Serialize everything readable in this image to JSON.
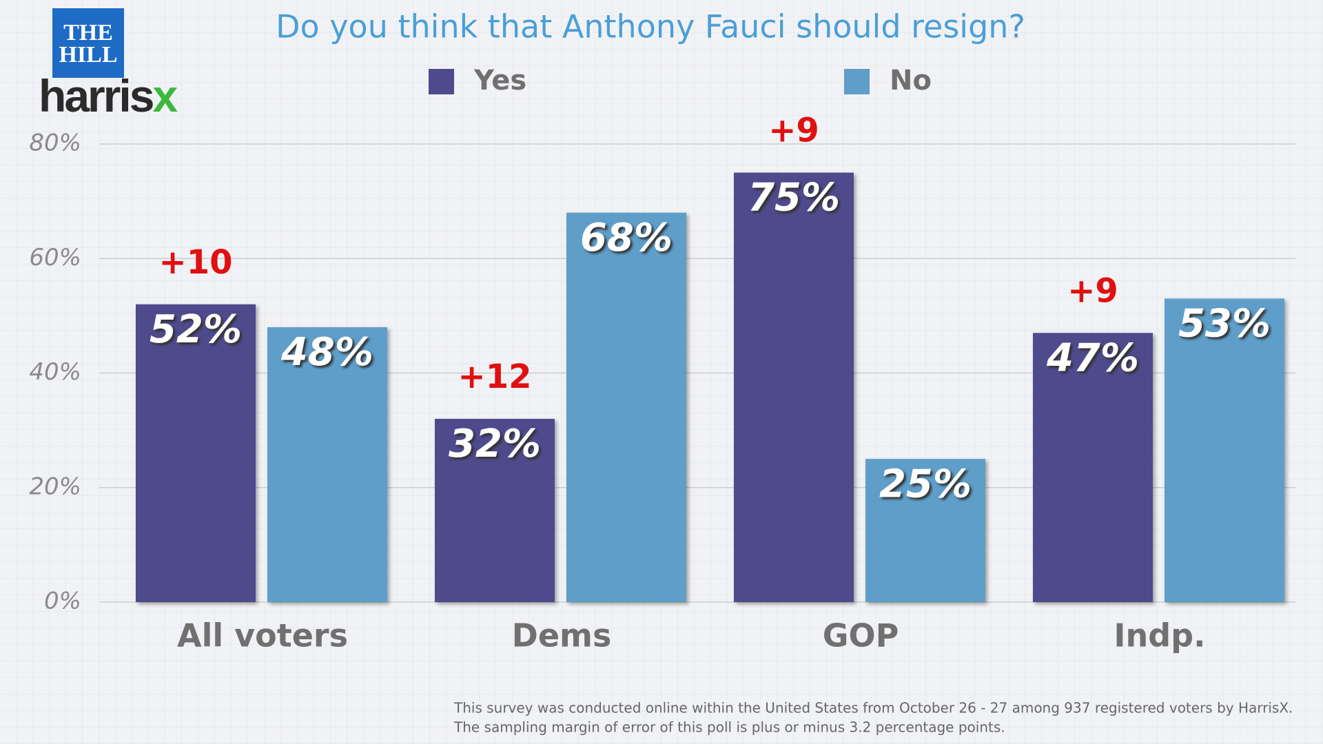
{
  "logo": {
    "publisher": [
      "THE",
      "HILL"
    ],
    "brand": "harris",
    "brand_mark": "x"
  },
  "chart_data": {
    "type": "bar",
    "title": "Do you think that Anthony Fauci should resign?",
    "categories": [
      "All voters",
      "Dems",
      "GOP",
      "Indp."
    ],
    "series": [
      {
        "name": "Yes",
        "color": "#4f4a8c",
        "values": [
          52,
          32,
          75,
          47
        ],
        "value_labels": [
          "52%",
          "32%",
          "75%",
          "47%"
        ]
      },
      {
        "name": "No",
        "color": "#5e9ec9",
        "values": [
          48,
          68,
          25,
          53
        ],
        "value_labels": [
          "48%",
          "68%",
          "25%",
          "53%"
        ]
      }
    ],
    "annotations": [
      "+10",
      "+12",
      "+9",
      "+9"
    ],
    "ylim": [
      0,
      80
    ],
    "yticks": [
      {
        "value": 0,
        "label": "0%"
      },
      {
        "value": 20,
        "label": "20%"
      },
      {
        "value": 40,
        "label": "40%"
      },
      {
        "value": 60,
        "label": "60%"
      },
      {
        "value": 80,
        "label": "80%"
      }
    ],
    "grid": true,
    "legend": "top",
    "footnote": [
      "This survey was conducted online within the United States from October 26 - 27 among 937 registered voters by HarrisX.",
      "The sampling margin of error of this poll is plus or minus 3.2 percentage points."
    ]
  }
}
